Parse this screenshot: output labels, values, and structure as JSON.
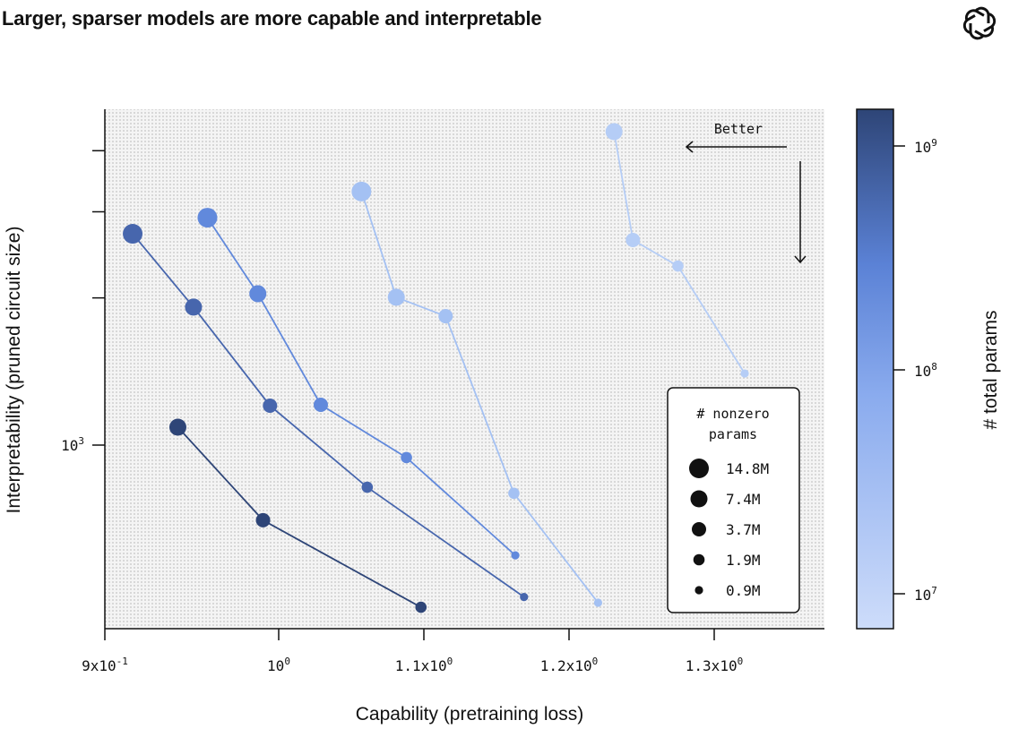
{
  "title": "Larger, sparser models are more capable and interpretable",
  "logo": "openai-logo-icon",
  "chart_data": {
    "type": "scatter",
    "title": "Larger, sparser models are more capable and interpretable",
    "xlabel": "Capability (pretraining loss)",
    "ylabel": "Interpretability (pruned circuit size)",
    "x_scale": "log",
    "y_scale": "log",
    "xlim": [
      0.9,
      1.376
    ],
    "ylim": [
      421,
      4870
    ],
    "x_ticks": [
      {
        "value": 0.9,
        "label": "9x10",
        "exp": "-1"
      },
      {
        "value": 1.0,
        "label": "10",
        "exp": "0"
      },
      {
        "value": 1.1,
        "label": "1.1x10",
        "exp": "0"
      },
      {
        "value": 1.2,
        "label": "1.2x10",
        "exp": "0"
      },
      {
        "value": 1.3,
        "label": "1.3x10",
        "exp": "0"
      }
    ],
    "y_ticks": [
      {
        "value": 1000,
        "label": "10",
        "exp": "3"
      },
      {
        "value": 2000,
        "label": "",
        "exp": ""
      },
      {
        "value": 3000,
        "label": "",
        "exp": ""
      },
      {
        "value": 4000,
        "label": "",
        "exp": ""
      }
    ],
    "grid": false,
    "background": "dotted",
    "annotation": {
      "text": "Better",
      "arrows": [
        "left",
        "down"
      ]
    },
    "series": [
      {
        "total_params": 1000000000,
        "color": "#2e4577",
        "points": [
          {
            "x": 0.942,
            "y": 1088,
            "nonzero": "7.4M"
          },
          {
            "x": 0.991,
            "y": 702,
            "nonzero": "3.7M"
          },
          {
            "x": 1.098,
            "y": 466,
            "nonzero": "1.9M"
          }
        ]
      },
      {
        "total_params": 300000000,
        "color": "#4766ad",
        "points": [
          {
            "x": 0.916,
            "y": 2705,
            "nonzero": "14.8M"
          },
          {
            "x": 0.951,
            "y": 1915,
            "nonzero": "7.4M"
          },
          {
            "x": 0.995,
            "y": 1204,
            "nonzero": "3.7M"
          },
          {
            "x": 1.061,
            "y": 820,
            "nonzero": "1.9M"
          },
          {
            "x": 1.169,
            "y": 489,
            "nonzero": "0.9M"
          }
        ]
      },
      {
        "total_params": 100000000,
        "color": "#6189dc",
        "points": [
          {
            "x": 0.959,
            "y": 2918,
            "nonzero": "14.8M"
          },
          {
            "x": 0.988,
            "y": 2040,
            "nonzero": "7.4M"
          },
          {
            "x": 1.029,
            "y": 1209,
            "nonzero": "3.7M"
          },
          {
            "x": 1.088,
            "y": 943,
            "nonzero": "1.9M"
          },
          {
            "x": 1.163,
            "y": 595,
            "nonzero": "0.9M"
          }
        ]
      },
      {
        "total_params": 30000000,
        "color": "#a4c1f3",
        "points": [
          {
            "x": 1.057,
            "y": 3300,
            "nonzero": "14.8M"
          },
          {
            "x": 1.081,
            "y": 2006,
            "nonzero": "7.4M"
          },
          {
            "x": 1.115,
            "y": 1835,
            "nonzero": "3.7M"
          },
          {
            "x": 1.162,
            "y": 797,
            "nonzero": "1.9M"
          },
          {
            "x": 1.22,
            "y": 476,
            "nonzero": "0.9M"
          }
        ]
      },
      {
        "total_params": 15000000,
        "color": "#b5cdf6",
        "points": [
          {
            "x": 1.231,
            "y": 4375,
            "nonzero": "7.4M"
          },
          {
            "x": 1.244,
            "y": 2627,
            "nonzero": "3.7M"
          },
          {
            "x": 1.275,
            "y": 2324,
            "nonzero": "1.9M"
          },
          {
            "x": 1.321,
            "y": 1401,
            "nonzero": "0.9M"
          }
        ]
      }
    ],
    "size_legend": {
      "title_line1": "# nonzero",
      "title_line2": "params",
      "entries": [
        "14.8M",
        "7.4M",
        "3.7M",
        "1.9M",
        "0.9M"
      ]
    },
    "colorbar": {
      "label": "# total params",
      "scale": "log",
      "range": [
        7000000,
        1400000000
      ],
      "colors": [
        "#cddcfa",
        "#6f96e6",
        "#2e4577"
      ],
      "ticks": [
        {
          "value": 1000000000,
          "label": "10",
          "exp": "9"
        },
        {
          "value": 100000000,
          "label": "10",
          "exp": "8"
        },
        {
          "value": 10000000,
          "label": "10",
          "exp": "7"
        }
      ]
    }
  }
}
